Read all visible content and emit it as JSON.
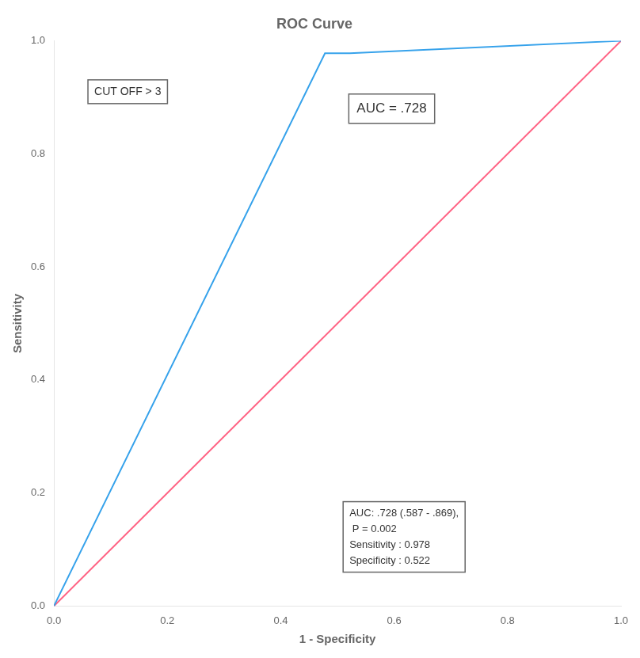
{
  "chart_data": {
    "type": "line",
    "title": "ROC Curve",
    "xlabel": "1 - Specificity",
    "ylabel": "Sensitivity",
    "series": [
      {
        "x": [
          0.0,
          0.478,
          0.522,
          1.0
        ],
        "values": [
          0.0,
          0.978,
          0.978,
          1.0
        ],
        "marker": "none"
      },
      {
        "x": [
          0.0,
          1.0
        ],
        "values": [
          0.0,
          1.0
        ],
        "marker": "none"
      }
    ],
    "xlim": [
      0.0,
      1.0
    ],
    "ylim": [
      0.0,
      1.0
    ],
    "xticks": [
      {
        "value": 0.0,
        "label": "0.0"
      },
      0.2,
      0.4,
      0.6,
      0.8,
      {
        "value": 1.0,
        "label": "1.0"
      }
    ],
    "yticks": [
      {
        "value": 0.0,
        "label": "0.0"
      },
      0.2,
      0.4,
      0.6,
      0.8,
      {
        "value": 1.0,
        "label": "1.0"
      }
    ],
    "grid": false,
    "annotations": [
      "CUT OFF > 3",
      "AUC = .728",
      "AUC: .728 (.587 - .869),\n P = 0.002\nSensitivity : 0.978\nSpecificity : 0.522"
    ]
  }
}
